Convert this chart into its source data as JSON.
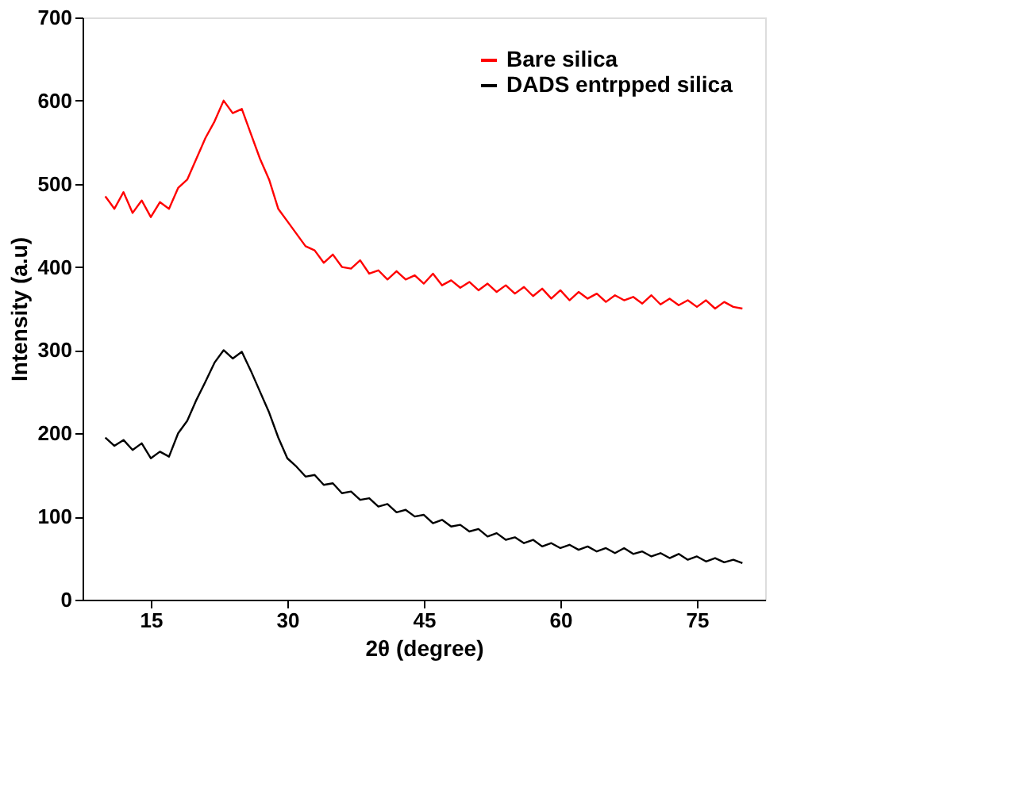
{
  "chart_data": {
    "type": "line",
    "xlabel": "2θ (degree)",
    "ylabel": "Intensity (a.u)",
    "x": [
      10,
      11,
      12,
      13,
      14,
      15,
      16,
      17,
      18,
      19,
      20,
      21,
      22,
      23,
      24,
      25,
      26,
      27,
      28,
      29,
      30,
      31,
      32,
      33,
      34,
      35,
      36,
      37,
      38,
      39,
      40,
      41,
      42,
      43,
      44,
      45,
      46,
      47,
      48,
      49,
      50,
      51,
      52,
      53,
      54,
      55,
      56,
      57,
      58,
      59,
      60,
      61,
      62,
      63,
      64,
      65,
      66,
      67,
      68,
      69,
      70,
      71,
      72,
      73,
      74,
      75,
      76,
      77,
      78,
      79,
      80
    ],
    "series": [
      {
        "name": "Bare silica",
        "color": "#ff0000",
        "values": [
          485,
          470,
          490,
          465,
          480,
          460,
          478,
          470,
          495,
          505,
          530,
          555,
          575,
          600,
          585,
          590,
          560,
          530,
          505,
          470,
          455,
          440,
          425,
          420,
          405,
          415,
          400,
          398,
          408,
          392,
          396,
          385,
          395,
          385,
          390,
          380,
          392,
          378,
          384,
          375,
          382,
          372,
          380,
          370,
          378,
          368,
          376,
          365,
          374,
          362,
          372,
          360,
          370,
          362,
          368,
          358,
          366,
          360,
          364,
          356,
          366,
          355,
          362,
          354,
          360,
          352,
          360,
          350,
          358,
          352,
          350
        ]
      },
      {
        "name": "DADS entrpped silica",
        "color": "#000000",
        "values": [
          195,
          185,
          192,
          180,
          188,
          170,
          178,
          172,
          200,
          215,
          240,
          262,
          285,
          300,
          290,
          298,
          275,
          250,
          225,
          195,
          170,
          160,
          148,
          150,
          138,
          140,
          128,
          130,
          120,
          122,
          112,
          115,
          105,
          108,
          100,
          102,
          92,
          96,
          88,
          90,
          82,
          85,
          76,
          80,
          72,
          75,
          68,
          72,
          64,
          68,
          62,
          66,
          60,
          64,
          58,
          62,
          56,
          62,
          55,
          58,
          52,
          56,
          50,
          55,
          48,
          52,
          46,
          50,
          45,
          48,
          44
        ]
      }
    ],
    "xlim": [
      7.5,
      82.5
    ],
    "xticks": [
      15,
      30,
      45,
      60,
      75
    ],
    "ylim": [
      0,
      700
    ],
    "yticks": [
      0,
      100,
      200,
      300,
      400,
      500,
      600,
      700
    ],
    "grid": false,
    "legend": "top right",
    "marker": "none",
    "line_style": "solid"
  }
}
